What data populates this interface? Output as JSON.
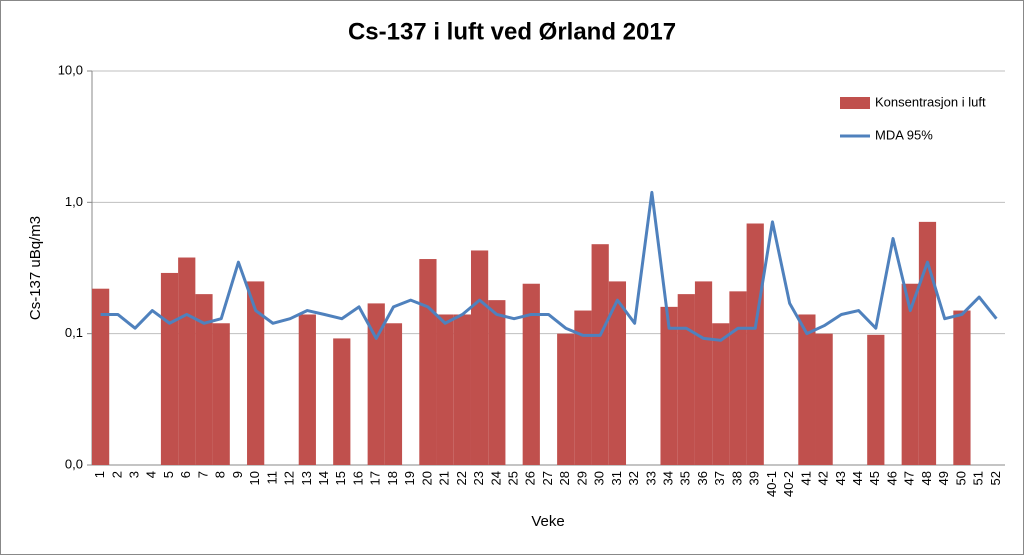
{
  "chart_data": {
    "type": "bar_line",
    "title": "Cs-137 i luft ved Ørland 2017",
    "x_label": "Veke",
    "y_label": "Cs-137 uBq/m3",
    "categories": [
      "1",
      "2",
      "3",
      "4",
      "5",
      "6",
      "7",
      "8",
      "9",
      "10",
      "11",
      "12",
      "13",
      "14",
      "15",
      "16",
      "17",
      "18",
      "19",
      "20",
      "21",
      "22",
      "23",
      "24",
      "25",
      "26",
      "27",
      "28",
      "29",
      "30",
      "31",
      "32",
      "33",
      "34",
      "35",
      "36",
      "37",
      "38",
      "39",
      "40-1",
      "40-2",
      "41",
      "42",
      "43",
      "44",
      "45",
      "46",
      "47",
      "48",
      "49",
      "50",
      "51",
      "52"
    ],
    "series": [
      {
        "name": "Konsentrasjon i luft",
        "type": "bar",
        "color": "#c0504d",
        "values": [
          0.22,
          null,
          null,
          null,
          0.29,
          0.38,
          0.2,
          0.12,
          null,
          0.25,
          null,
          null,
          0.14,
          null,
          0.092,
          null,
          0.17,
          0.12,
          null,
          0.37,
          0.14,
          0.14,
          0.43,
          0.18,
          null,
          0.24,
          null,
          0.1,
          0.15,
          0.48,
          0.25,
          null,
          null,
          0.16,
          0.2,
          0.25,
          0.12,
          0.21,
          0.69,
          null,
          null,
          0.14,
          0.1,
          null,
          null,
          0.098,
          null,
          0.24,
          0.71,
          null,
          0.15,
          null,
          null
        ]
      },
      {
        "name": "MDA 95%",
        "type": "line",
        "color": "#4f81bd",
        "values": [
          0.14,
          0.14,
          0.11,
          0.15,
          0.12,
          0.14,
          0.12,
          0.13,
          0.35,
          0.15,
          0.12,
          0.13,
          0.15,
          0.14,
          0.13,
          0.16,
          0.092,
          0.16,
          0.18,
          0.16,
          0.12,
          0.14,
          0.18,
          0.14,
          0.13,
          0.14,
          0.14,
          0.11,
          0.097,
          0.097,
          0.18,
          0.12,
          1.19,
          0.11,
          0.11,
          0.092,
          0.089,
          0.11,
          0.11,
          0.71,
          0.17,
          0.1,
          0.115,
          0.14,
          0.15,
          0.11,
          0.53,
          0.15,
          0.35,
          0.13,
          0.14,
          0.19,
          0.13
        ]
      }
    ],
    "log_scale": true,
    "ylim": [
      0.01,
      10
    ],
    "yticks": [
      {
        "value": 0.01,
        "label": "0,0"
      },
      {
        "value": 0.1,
        "label": "0,1"
      },
      {
        "value": 1,
        "label": "1,0"
      },
      {
        "value": 10,
        "label": "10,0"
      }
    ],
    "grid": true,
    "legend": "top-right"
  }
}
